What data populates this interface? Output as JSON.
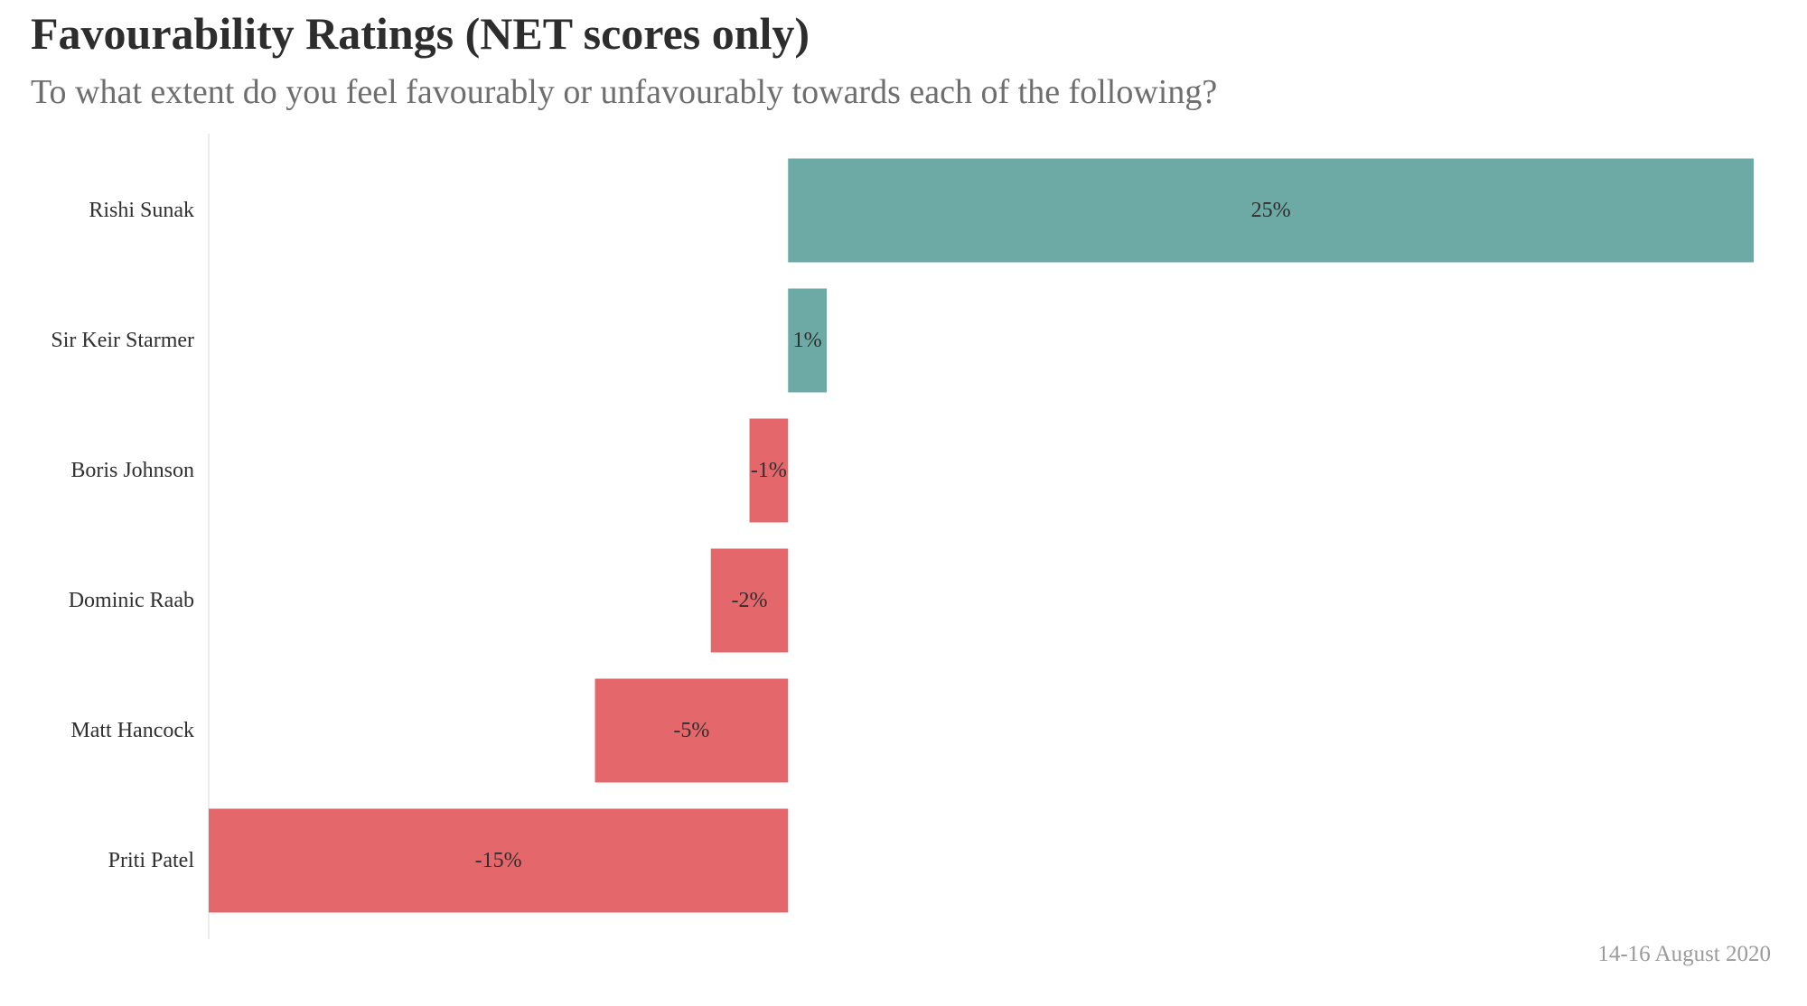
{
  "chart_data": {
    "type": "bar",
    "orientation": "horizontal",
    "title": "Favourability Ratings (NET scores only)",
    "subtitle": "To what extent do you feel favourably or unfavourably towards each of the following?",
    "categories": [
      "Rishi Sunak",
      "Sir Keir Starmer",
      "Boris Johnson",
      "Dominic Raab",
      "Matt Hancock",
      "Priti Patel"
    ],
    "values": [
      25,
      1,
      -1,
      -2,
      -5,
      -15
    ],
    "value_labels": [
      "25%",
      "1%",
      "-1%",
      "-2%",
      "-5%",
      "-15%"
    ],
    "xlim": [
      -15,
      25
    ],
    "grid": false,
    "legend": "none",
    "colors": {
      "positive": "#6eaaa5",
      "negative": "#e4686b"
    }
  },
  "footnote": "14-16 August 2020"
}
